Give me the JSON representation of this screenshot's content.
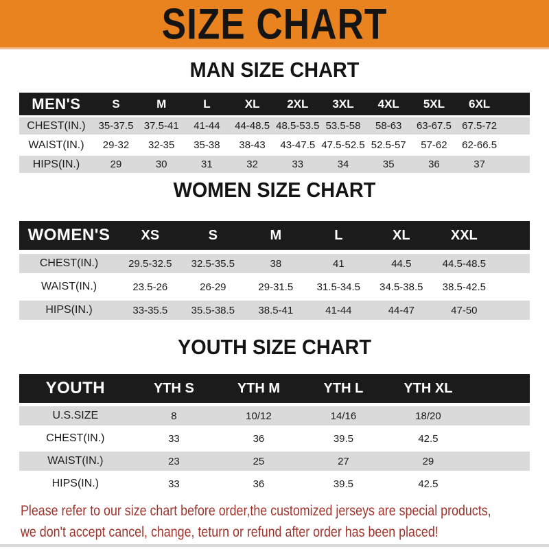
{
  "banner": {
    "title": "SIZE CHART"
  },
  "colors": {
    "banner_bg": "#E8831F",
    "header_bar": "#1B1B1B",
    "row_gray": "#DADADA",
    "footer_text": "#A0342C"
  },
  "sections": [
    {
      "key": "men",
      "heading": "MAN SIZE CHART",
      "table": {
        "header": [
          "MEN'S",
          "S",
          "M",
          "L",
          "XL",
          "2XL",
          "3XL",
          "4XL",
          "5XL",
          "6XL"
        ],
        "rows": [
          {
            "label": "CHEST(IN.)",
            "values": [
              "35-37.5",
              "37.5-41",
              "41-44",
              "44-48.5",
              "48.5-53.5",
              "53.5-58",
              "58-63",
              "63-67.5",
              "67.5-72"
            ]
          },
          {
            "label": "WAIST(IN.)",
            "values": [
              "29-32",
              "32-35",
              "35-38",
              "38-43",
              "43-47.5",
              "47.5-52.5",
              "52.5-57",
              "57-62",
              "62-66.5"
            ]
          },
          {
            "label": "HIPS(IN.)",
            "values": [
              "29",
              "30",
              "31",
              "32",
              "33",
              "34",
              "35",
              "36",
              "37"
            ]
          }
        ]
      }
    },
    {
      "key": "women",
      "heading": "WOMEN SIZE CHART",
      "table": {
        "header": [
          "WOMEN'S",
          "XS",
          "S",
          "M",
          "L",
          "XL",
          "XXL"
        ],
        "rows": [
          {
            "label": "CHEST(IN.)",
            "values": [
              "29.5-32.5",
              "32.5-35.5",
              "38",
              "41",
              "44.5",
              "44.5-48.5"
            ]
          },
          {
            "label": "WAIST(IN.)",
            "values": [
              "23.5-26",
              "26-29",
              "29-31.5",
              "31.5-34.5",
              "34.5-38.5",
              "38.5-42.5"
            ]
          },
          {
            "label": "HIPS(IN.)",
            "values": [
              "33-35.5",
              "35.5-38.5",
              "38.5-41",
              "41-44",
              "44-47",
              "47-50"
            ]
          }
        ]
      }
    },
    {
      "key": "youth",
      "heading": "YOUTH SIZE CHART",
      "table": {
        "header": [
          "YOUTH",
          "YTH S",
          "YTH M",
          "YTH L",
          "YTH XL"
        ],
        "rows": [
          {
            "label": "U.S.SIZE",
            "values": [
              "8",
              "10/12",
              "14/16",
              "18/20"
            ]
          },
          {
            "label": "CHEST(IN.)",
            "values": [
              "33",
              "36",
              "39.5",
              "42.5"
            ]
          },
          {
            "label": "WAIST(IN.)",
            "values": [
              "23",
              "25",
              "27",
              "29"
            ]
          },
          {
            "label": "HIPS(IN.)",
            "values": [
              "33",
              "36",
              "39.5",
              "42.5"
            ]
          }
        ]
      }
    }
  ],
  "footer": {
    "line1": "Please refer to our size chart before order,the customized jerseys are special products,",
    "line2": "we don't accept cancel, change, teturn or refund after order has been placed!"
  }
}
